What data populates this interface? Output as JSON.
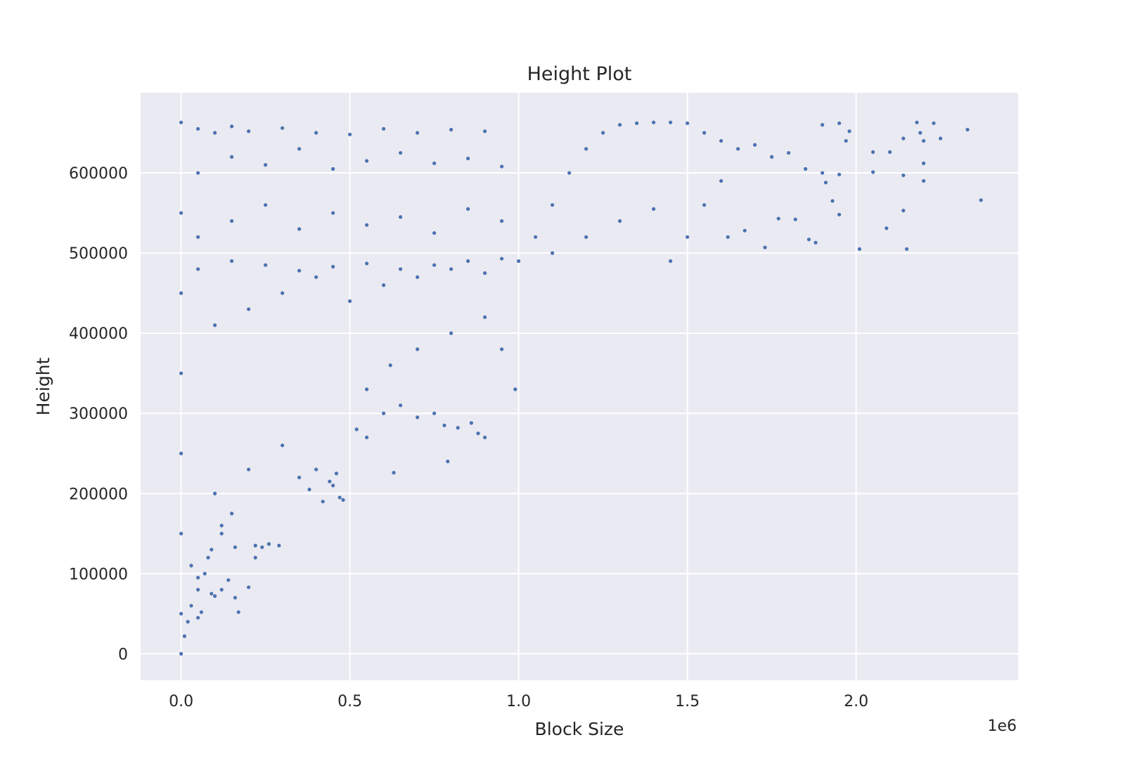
{
  "chart_data": {
    "type": "scatter",
    "title": "Height Plot",
    "xlabel": "Block Size",
    "ylabel": "Height",
    "x_offset_label": "1e6",
    "xlim": [
      -0.12,
      2.48
    ],
    "ylim": [
      -33000,
      700000
    ],
    "x_ticks": [
      0.0,
      0.5,
      1.0,
      1.5,
      2.0
    ],
    "x_tick_labels": [
      "0.0",
      "0.5",
      "1.0",
      "1.5",
      "2.0"
    ],
    "y_ticks": [
      0,
      100000,
      200000,
      300000,
      400000,
      500000,
      600000
    ],
    "y_tick_labels": [
      "0",
      "100000",
      "200000",
      "300000",
      "400000",
      "500000",
      "600000"
    ],
    "grid": true,
    "background": "#eaeaf2",
    "marker_color": "#4c72b0",
    "series": [
      {
        "points": [
          [
            0.0,
            0
          ],
          [
            0.0,
            50000
          ],
          [
            0.0,
            150000
          ],
          [
            0.0,
            250000
          ],
          [
            0.0,
            350000
          ],
          [
            0.0,
            450000
          ],
          [
            0.0,
            550000
          ],
          [
            0.0,
            663000
          ],
          [
            0.01,
            22000
          ],
          [
            0.02,
            40000
          ],
          [
            0.03,
            60000
          ],
          [
            0.05,
            80000
          ],
          [
            0.07,
            100000
          ],
          [
            0.09,
            130000
          ],
          [
            0.12,
            160000
          ],
          [
            0.15,
            175000
          ],
          [
            0.05,
            45000
          ],
          [
            0.06,
            52000
          ],
          [
            0.09,
            75000
          ],
          [
            0.1,
            72000
          ],
          [
            0.12,
            80000
          ],
          [
            0.14,
            92000
          ],
          [
            0.16,
            70000
          ],
          [
            0.17,
            52000
          ],
          [
            0.2,
            83000
          ],
          [
            0.22,
            120000
          ],
          [
            0.24,
            133000
          ],
          [
            0.26,
            137000
          ],
          [
            0.29,
            135000
          ],
          [
            0.22,
            135000
          ],
          [
            0.16,
            133000
          ],
          [
            0.03,
            110000
          ],
          [
            0.05,
            95000
          ],
          [
            0.08,
            120000
          ],
          [
            0.12,
            150000
          ],
          [
            0.1,
            200000
          ],
          [
            0.2,
            230000
          ],
          [
            0.3,
            260000
          ],
          [
            0.4,
            230000
          ],
          [
            0.45,
            210000
          ],
          [
            0.47,
            195000
          ],
          [
            0.48,
            192000
          ],
          [
            0.35,
            220000
          ],
          [
            0.38,
            205000
          ],
          [
            0.42,
            190000
          ],
          [
            0.44,
            215000
          ],
          [
            0.46,
            225000
          ],
          [
            0.52,
            280000
          ],
          [
            0.55,
            270000
          ],
          [
            0.6,
            300000
          ],
          [
            0.63,
            226000
          ],
          [
            0.65,
            310000
          ],
          [
            0.7,
            295000
          ],
          [
            0.75,
            300000
          ],
          [
            0.78,
            285000
          ],
          [
            0.79,
            240000
          ],
          [
            0.82,
            282000
          ],
          [
            0.86,
            288000
          ],
          [
            0.88,
            275000
          ],
          [
            0.9,
            270000
          ],
          [
            0.55,
            330000
          ],
          [
            0.62,
            360000
          ],
          [
            0.7,
            380000
          ],
          [
            0.8,
            400000
          ],
          [
            0.9,
            420000
          ],
          [
            0.95,
            380000
          ],
          [
            0.99,
            330000
          ],
          [
            0.1,
            410000
          ],
          [
            0.2,
            430000
          ],
          [
            0.3,
            450000
          ],
          [
            0.4,
            470000
          ],
          [
            0.5,
            440000
          ],
          [
            0.6,
            460000
          ],
          [
            0.7,
            470000
          ],
          [
            0.8,
            480000
          ],
          [
            0.9,
            475000
          ],
          [
            0.05,
            480000
          ],
          [
            0.15,
            490000
          ],
          [
            0.25,
            485000
          ],
          [
            0.35,
            478000
          ],
          [
            0.45,
            483000
          ],
          [
            0.55,
            487000
          ],
          [
            0.65,
            480000
          ],
          [
            0.75,
            485000
          ],
          [
            0.85,
            490000
          ],
          [
            0.95,
            493000
          ],
          [
            0.05,
            520000
          ],
          [
            0.15,
            540000
          ],
          [
            0.25,
            560000
          ],
          [
            0.35,
            530000
          ],
          [
            0.45,
            550000
          ],
          [
            0.55,
            535000
          ],
          [
            0.65,
            545000
          ],
          [
            0.75,
            525000
          ],
          [
            0.85,
            555000
          ],
          [
            0.95,
            540000
          ],
          [
            0.05,
            600000
          ],
          [
            0.15,
            620000
          ],
          [
            0.25,
            610000
          ],
          [
            0.35,
            630000
          ],
          [
            0.45,
            605000
          ],
          [
            0.55,
            615000
          ],
          [
            0.65,
            625000
          ],
          [
            0.75,
            612000
          ],
          [
            0.85,
            618000
          ],
          [
            0.95,
            608000
          ],
          [
            0.05,
            655000
          ],
          [
            0.1,
            650000
          ],
          [
            0.15,
            658000
          ],
          [
            0.2,
            652000
          ],
          [
            0.3,
            656000
          ],
          [
            0.4,
            650000
          ],
          [
            0.5,
            648000
          ],
          [
            0.6,
            655000
          ],
          [
            0.7,
            650000
          ],
          [
            0.8,
            654000
          ],
          [
            0.9,
            652000
          ],
          [
            1.0,
            490000
          ],
          [
            1.05,
            520000
          ],
          [
            1.1,
            560000
          ],
          [
            1.15,
            600000
          ],
          [
            1.2,
            630000
          ],
          [
            1.25,
            650000
          ],
          [
            1.3,
            660000
          ],
          [
            1.35,
            662000
          ],
          [
            1.4,
            663000
          ],
          [
            1.45,
            663000
          ],
          [
            1.5,
            662000
          ],
          [
            1.1,
            500000
          ],
          [
            1.2,
            520000
          ],
          [
            1.3,
            540000
          ],
          [
            1.4,
            555000
          ],
          [
            1.45,
            490000
          ],
          [
            1.5,
            520000
          ],
          [
            1.55,
            560000
          ],
          [
            1.6,
            590000
          ],
          [
            1.55,
            650000
          ],
          [
            1.6,
            640000
          ],
          [
            1.65,
            630000
          ],
          [
            1.7,
            635000
          ],
          [
            1.75,
            620000
          ],
          [
            1.8,
            625000
          ],
          [
            1.85,
            605000
          ],
          [
            1.9,
            600000
          ],
          [
            1.95,
            598000
          ],
          [
            1.62,
            520000
          ],
          [
            1.67,
            528000
          ],
          [
            1.73,
            507000
          ],
          [
            1.77,
            543000
          ],
          [
            1.82,
            542000
          ],
          [
            1.86,
            517000
          ],
          [
            1.88,
            513000
          ],
          [
            1.91,
            588000
          ],
          [
            1.93,
            565000
          ],
          [
            1.95,
            548000
          ],
          [
            1.9,
            660000
          ],
          [
            1.95,
            662000
          ],
          [
            1.97,
            640000
          ],
          [
            1.98,
            652000
          ],
          [
            2.01,
            505000
          ],
          [
            2.05,
            626000
          ],
          [
            2.05,
            601000
          ],
          [
            2.09,
            531000
          ],
          [
            2.1,
            626000
          ],
          [
            2.14,
            643000
          ],
          [
            2.14,
            597000
          ],
          [
            2.14,
            553000
          ],
          [
            2.15,
            505000
          ],
          [
            2.18,
            663000
          ],
          [
            2.19,
            650000
          ],
          [
            2.2,
            640000
          ],
          [
            2.2,
            590000
          ],
          [
            2.2,
            612000
          ],
          [
            2.23,
            662000
          ],
          [
            2.25,
            643000
          ],
          [
            2.33,
            654000
          ],
          [
            2.37,
            566000
          ]
        ]
      }
    ]
  }
}
